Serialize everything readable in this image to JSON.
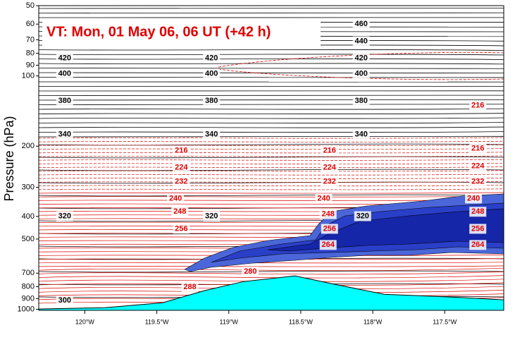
{
  "chart_data": {
    "type": "cross-section",
    "title": "VT:  Mon, 01 May 06, 06 UT (+42 h)",
    "ylabel": "Pressure (hPa)",
    "ylim": [
      50,
      1010
    ],
    "ylog": true,
    "yticks": [
      50,
      60,
      70,
      80,
      90,
      100,
      200,
      300,
      400,
      500,
      700,
      800,
      900,
      1000
    ],
    "xlim": [
      -120.32,
      -117.09
    ],
    "xticks": [
      {
        "value": -120,
        "label": "120°W"
      },
      {
        "value": -119.5,
        "label": "119.5°W"
      },
      {
        "value": -119,
        "label": "119°W"
      },
      {
        "value": -118.5,
        "label": "118.5°W"
      },
      {
        "value": -118,
        "label": "118°W"
      },
      {
        "value": -117.5,
        "label": "117.5°W"
      }
    ],
    "terrain": {
      "color": "#00ffff",
      "x": [
        -120.32,
        -119.86,
        -119.46,
        -119.17,
        -118.9,
        -118.54,
        -118.24,
        -117.92,
        -117.46,
        -117.09
      ],
      "values": [
        997,
        984,
        937,
        832,
        761,
        719,
        787,
        862,
        886,
        911
      ]
    },
    "theta_labels": {
      "color": "#000000",
      "values": [
        460,
        440,
        420,
        420,
        420,
        400,
        400,
        400,
        380,
        380,
        380,
        340,
        340,
        340,
        320,
        320,
        320,
        300
      ],
      "x": [
        -118.08,
        -118.08,
        -120.14,
        -119.12,
        -118.08,
        -120.14,
        -119.12,
        -118.08,
        -120.14,
        -119.12,
        -118.08,
        -120.14,
        -119.12,
        -118.08,
        -120.14,
        -119.12,
        -118.07,
        -120.14
      ],
      "y": [
        60,
        71,
        84,
        84,
        84,
        98,
        98,
        98,
        128,
        128,
        128,
        178,
        178,
        178,
        399,
        399,
        399,
        917
      ]
    },
    "temp_labels": {
      "color": "#e00000",
      "values": [
        216,
        216,
        216,
        216,
        224,
        224,
        224,
        232,
        232,
        232,
        240,
        240,
        240,
        248,
        248,
        248,
        256,
        256,
        256,
        264,
        264,
        280,
        288
      ],
      "x": [
        -117.27,
        -119.33,
        -118.3,
        -117.27,
        -119.33,
        -118.3,
        -117.27,
        -119.33,
        -118.3,
        -117.27,
        -119.37,
        -118.34,
        -117.3,
        -119.34,
        -118.31,
        -117.27,
        -119.33,
        -118.3,
        -117.27,
        -118.31,
        -117.27,
        -118.85,
        -119.27
      ],
      "y": [
        134,
        209,
        209,
        205,
        247,
        247,
        244,
        284,
        284,
        284,
        335,
        335,
        335,
        382,
        391,
        382,
        452,
        452,
        452,
        530,
        530,
        690,
        804
      ]
    }
  }
}
